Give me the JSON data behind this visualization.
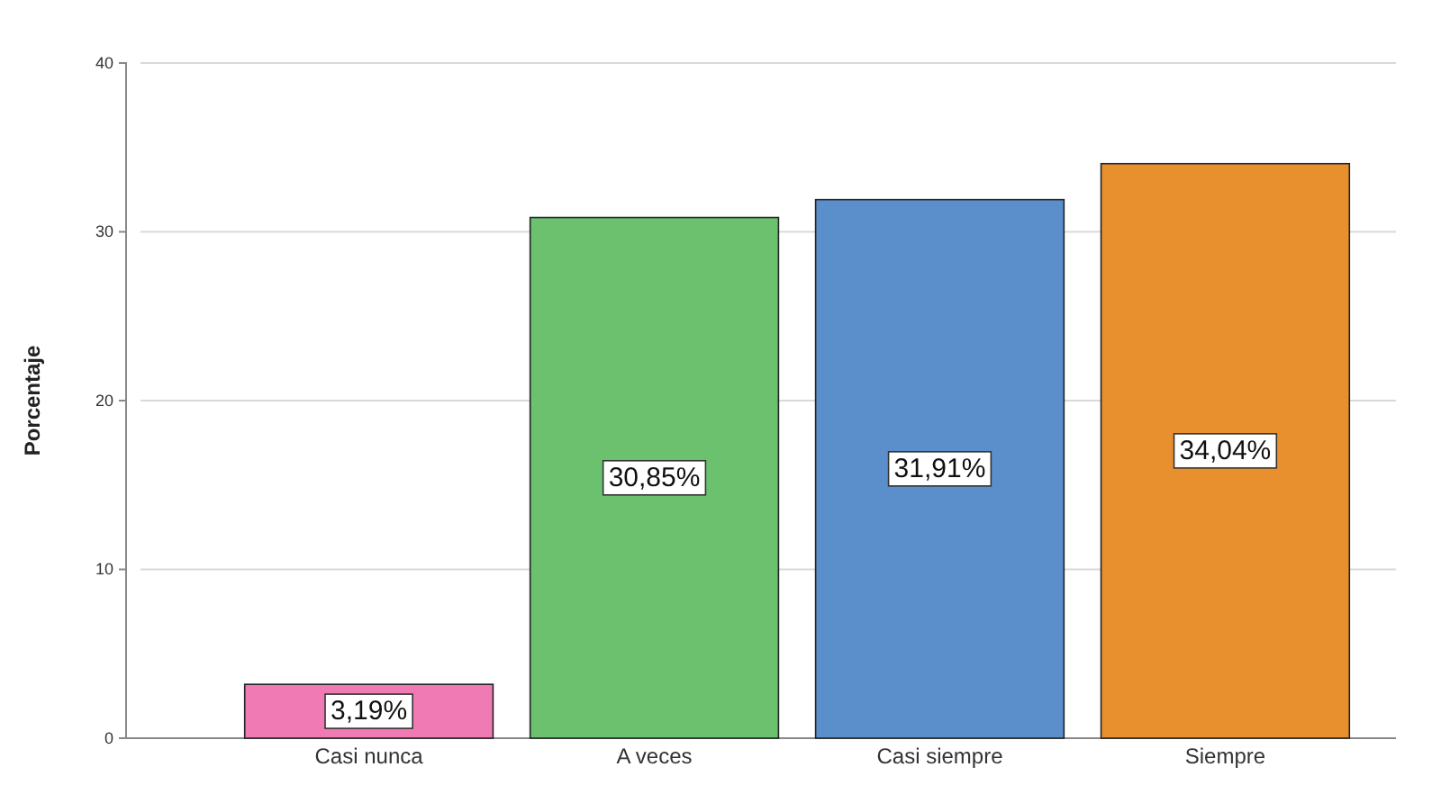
{
  "chart_data": {
    "type": "bar",
    "ylabel": "Porcentaje",
    "categories": [
      "Casi nunca",
      "A veces",
      "Casi siempre",
      "Siempre"
    ],
    "values": [
      3.19,
      30.85,
      31.91,
      34.04
    ],
    "value_labels": [
      "3,19%",
      "30,85%",
      "31,91%",
      "34,04%"
    ],
    "colors": [
      "#f07ab4",
      "#6cc16e",
      "#5b8fcc",
      "#e8902e"
    ],
    "ylim": [
      0,
      40
    ],
    "yticks": [
      0,
      10,
      20,
      30,
      40
    ],
    "grid": "y"
  }
}
